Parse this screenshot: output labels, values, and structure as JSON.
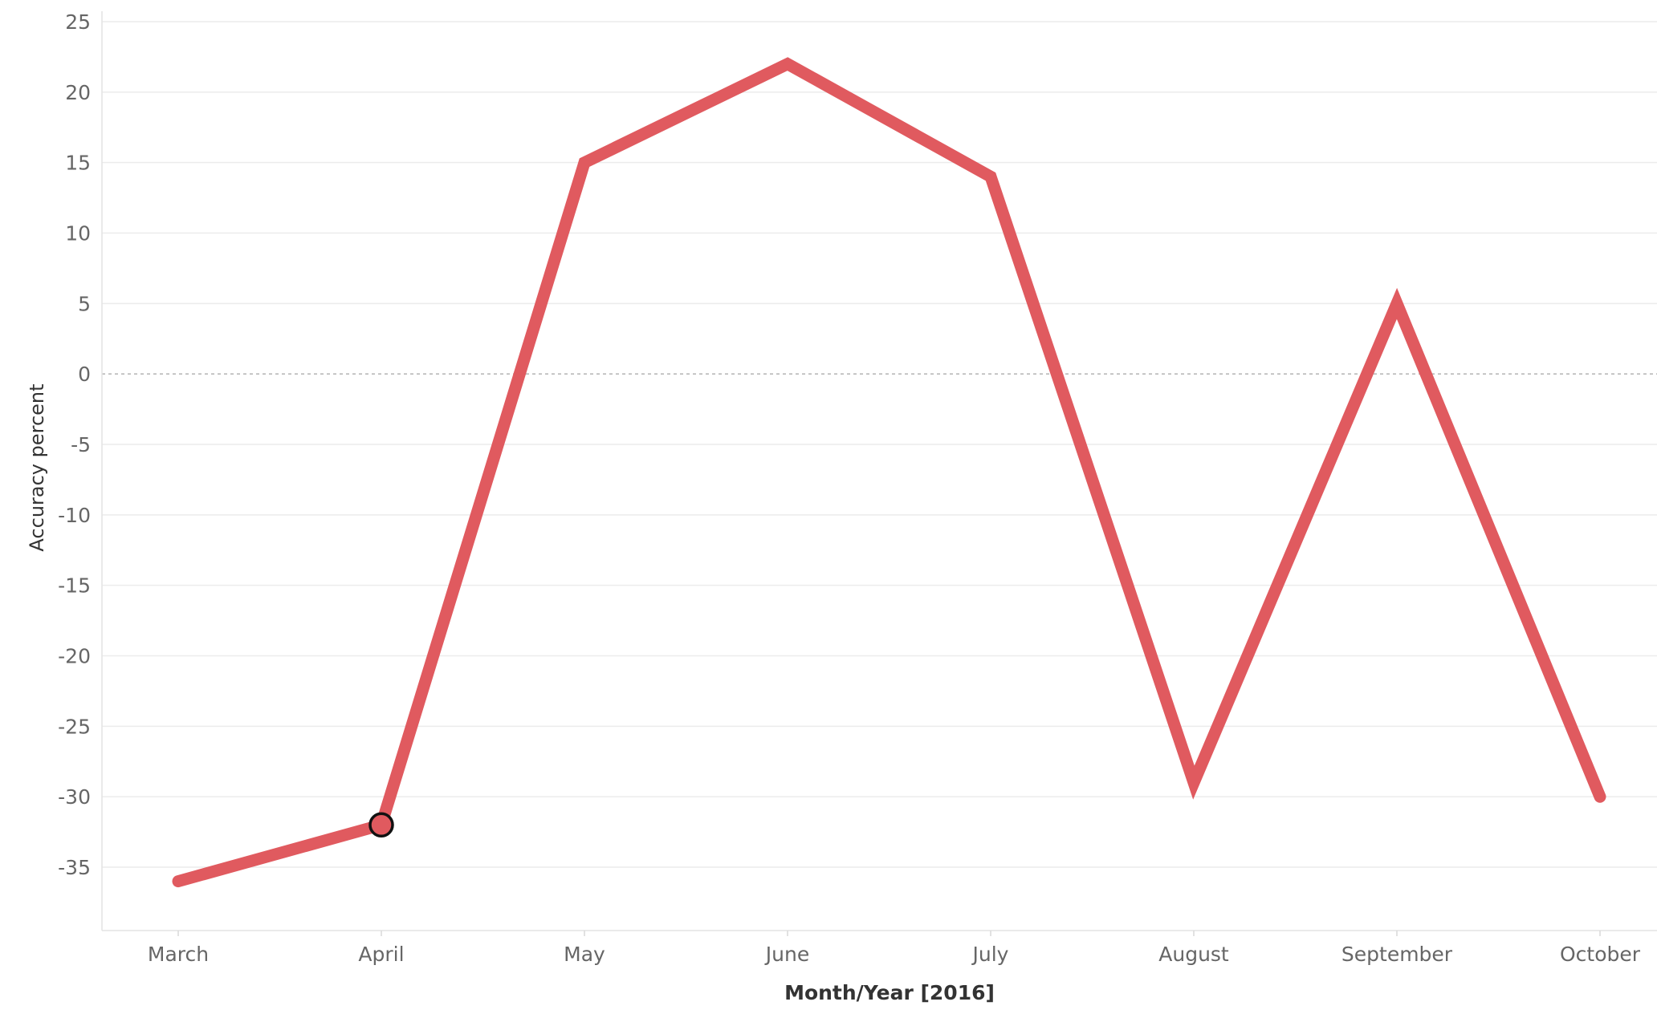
{
  "chart_data": {
    "type": "line",
    "categories": [
      "March",
      "April",
      "May",
      "June",
      "July",
      "August",
      "September",
      "October"
    ],
    "series": [
      {
        "values": [
          -36,
          -32,
          15,
          22,
          14,
          -29,
          5,
          -30
        ],
        "color": "#e05a5f"
      }
    ],
    "highlighted_point": {
      "category": "April",
      "value": -32
    },
    "title": "",
    "xlabel": "Month/Year [2016]",
    "ylabel": "Accuracy percent",
    "ylim": [
      -40,
      25
    ],
    "yticks": [
      25,
      20,
      15,
      10,
      5,
      0,
      -5,
      -10,
      -15,
      -20,
      -25,
      -30,
      -35
    ],
    "zero_line": "dashed",
    "grid": "horizontal",
    "legend": "none"
  }
}
